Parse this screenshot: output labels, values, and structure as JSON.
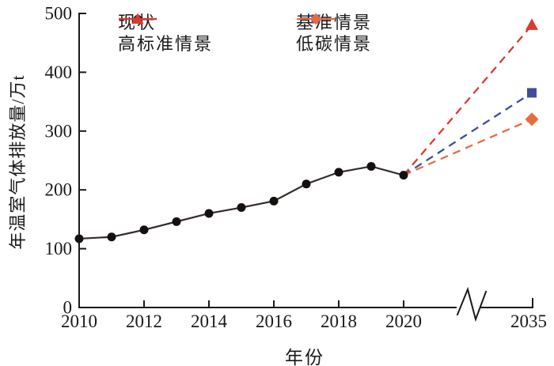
{
  "chart_data": {
    "type": "line",
    "title": "",
    "xlabel": "年份",
    "ylabel": "年温室气体排放量/万t",
    "ylim": [
      0,
      500
    ],
    "yticks": [
      0,
      100,
      200,
      300,
      400,
      500
    ],
    "xtick_labels": [
      "2010",
      "2012",
      "2014",
      "2016",
      "2018",
      "2020",
      "2035"
    ],
    "x_axis_break": {
      "between": [
        2020,
        2035
      ]
    },
    "axis_color": "#1a1a1a",
    "series": [
      {
        "name": "现状",
        "marker": "circle",
        "line_style": "solid",
        "color": "#332c28",
        "marker_color": "#151010",
        "x": [
          2010,
          2011,
          2012,
          2013,
          2014,
          2015,
          2016,
          2017,
          2018,
          2019,
          2020
        ],
        "values": [
          117,
          120,
          132,
          146,
          160,
          170,
          181,
          210,
          230,
          240,
          225
        ]
      },
      {
        "name": "高标准情景",
        "marker": "triangle",
        "line_style": "dashed",
        "color": "#d93b31",
        "x": [
          2020,
          2035
        ],
        "values": [
          225,
          480
        ]
      },
      {
        "name": "基准情景",
        "marker": "square",
        "line_style": "dashed",
        "color": "#3f4d9a",
        "x": [
          2020,
          2035
        ],
        "values": [
          225,
          365
        ]
      },
      {
        "name": "低碳情景",
        "marker": "diamond",
        "line_style": "dashed",
        "color": "#ea6b3f",
        "x": [
          2020,
          2035
        ],
        "values": [
          225,
          320
        ]
      }
    ],
    "legend": {
      "position": "top",
      "columns": [
        [
          "现状",
          "高标准情景"
        ],
        [
          "基准情景",
          "低碳情景"
        ]
      ]
    }
  }
}
